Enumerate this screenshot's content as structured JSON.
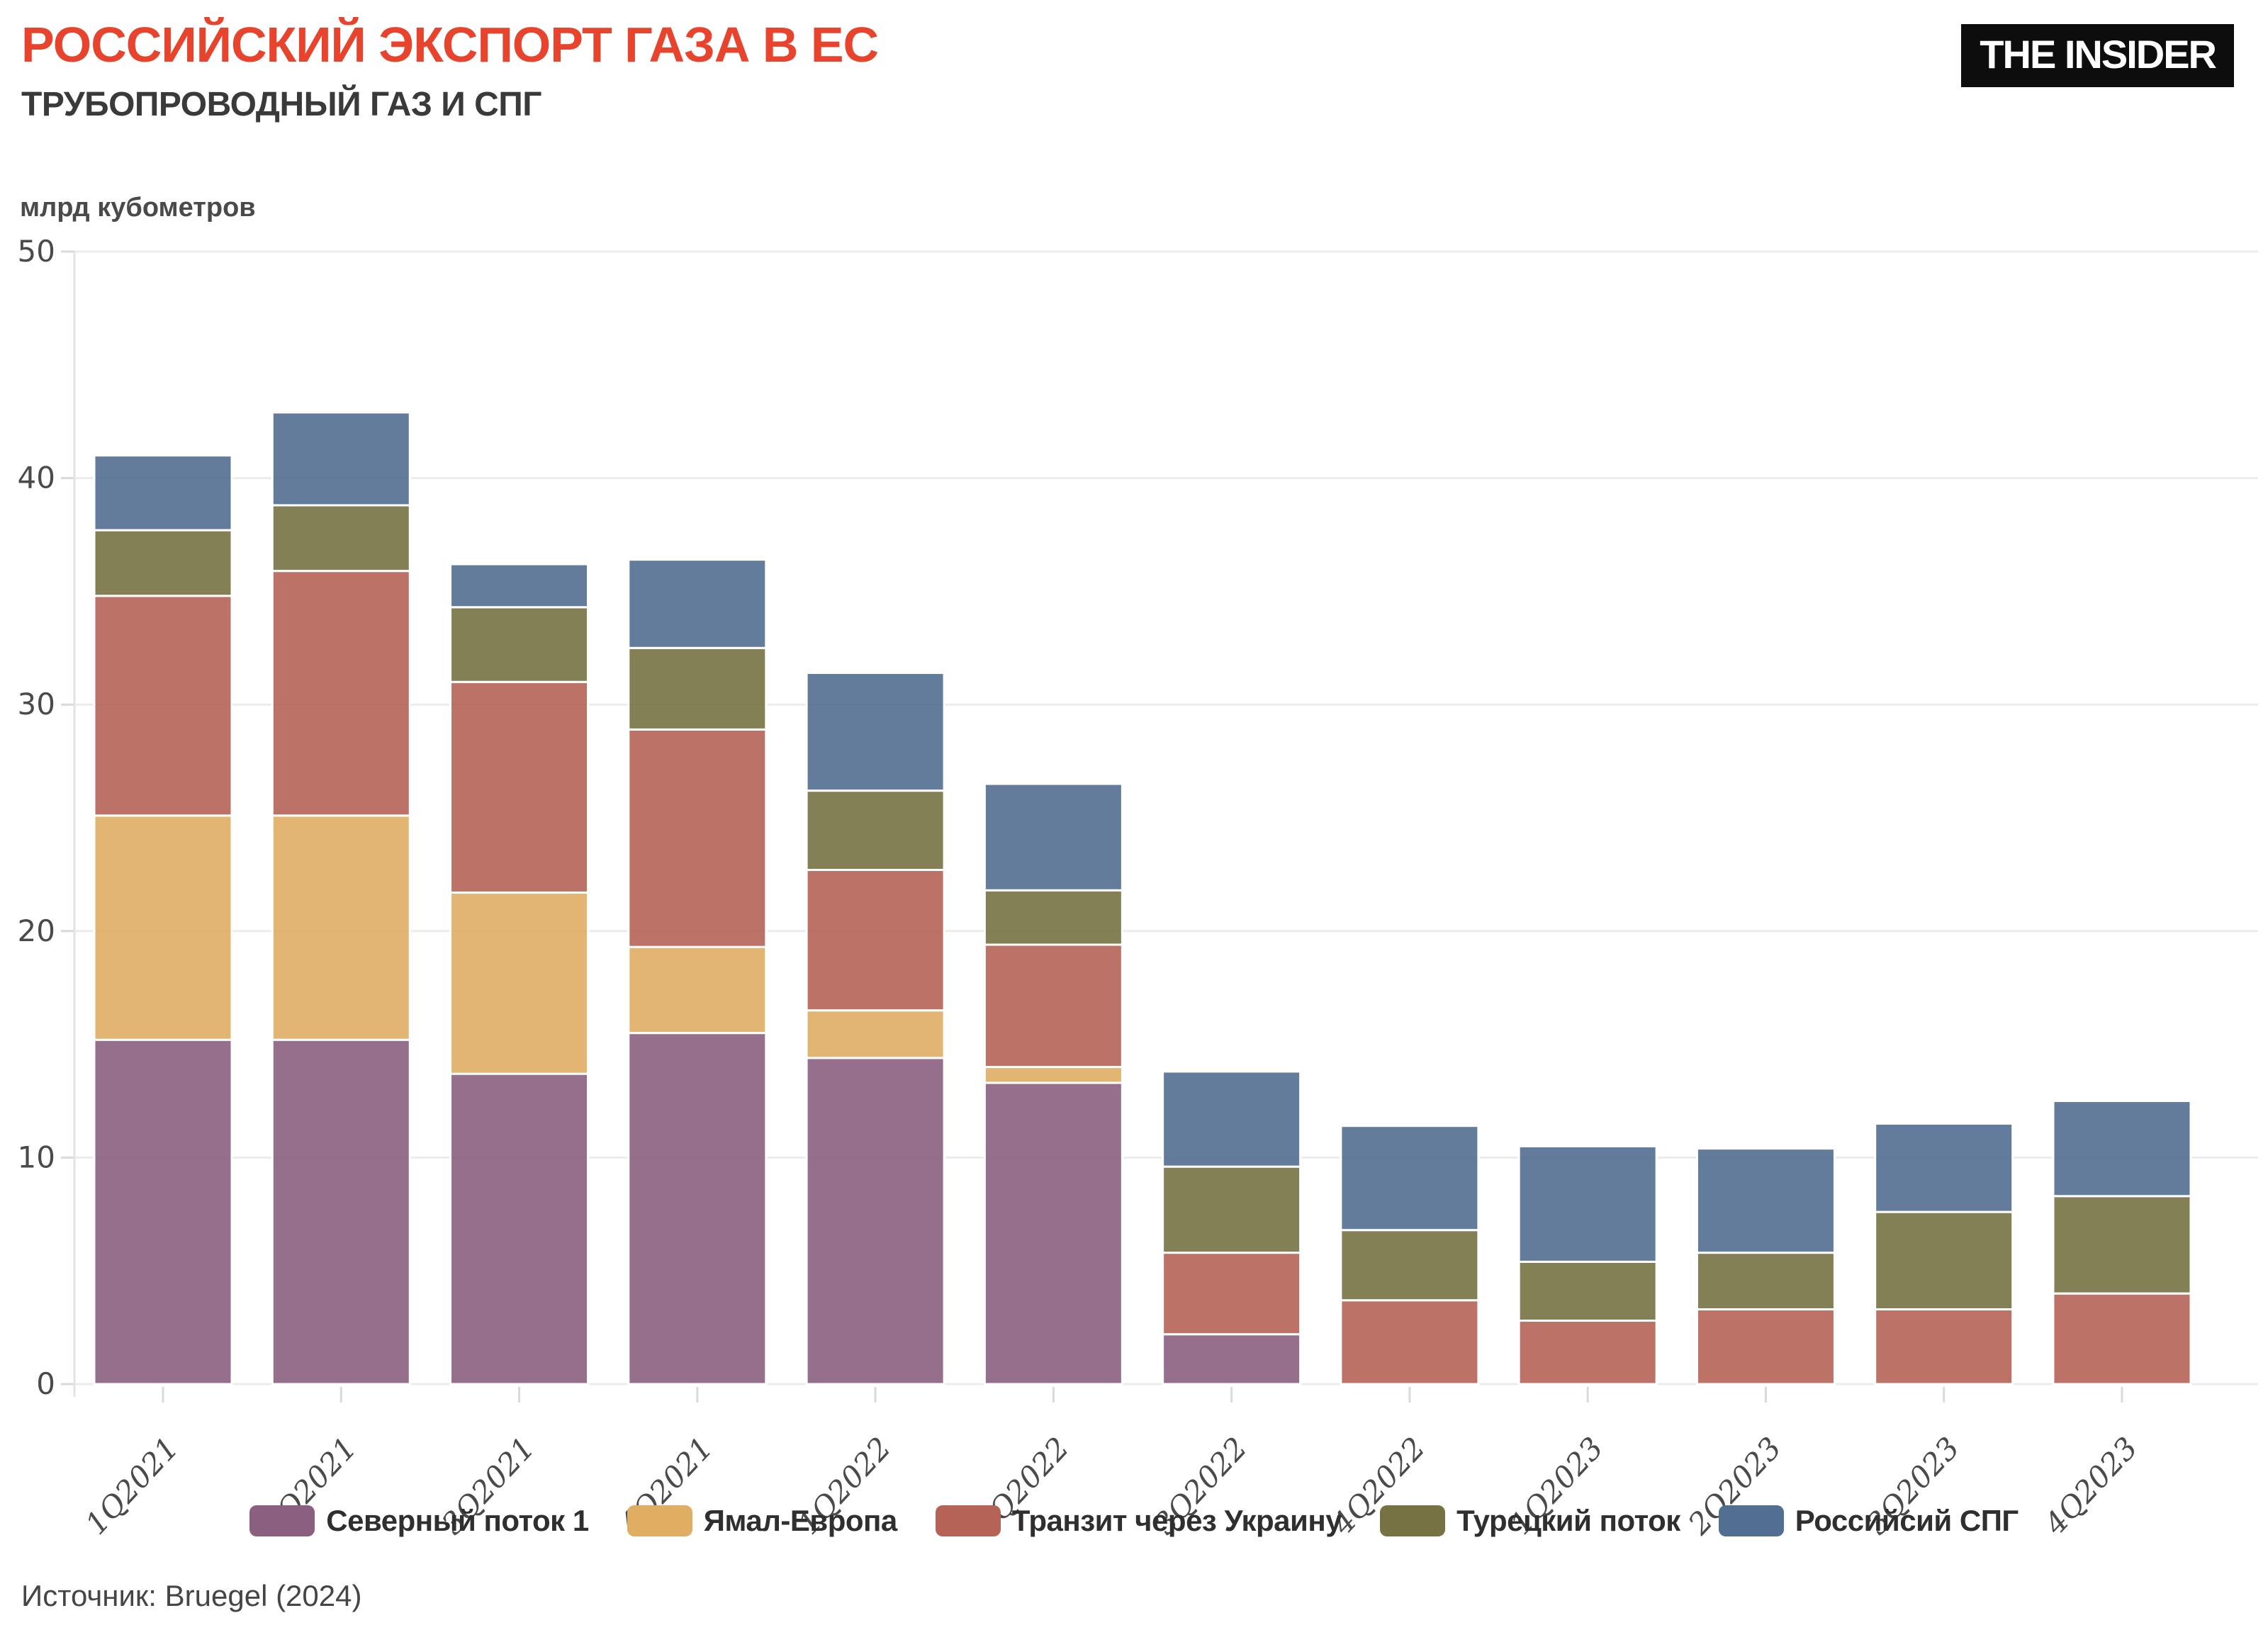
{
  "header": {
    "title": "РОССИЙСКИЙ ЭКСПОРТ ГАЗА В ЕС",
    "subtitle": "ТРУБОПРОВОДНЫЙ ГАЗ И СПГ",
    "logo_text": "THE INSIDER"
  },
  "axis": {
    "unit_label": "млрд кубометров"
  },
  "source": {
    "text": "Источник: Bruegel (2024)"
  },
  "colors": {
    "title_red": "#E8432D",
    "grid": "#ECECEC",
    "axis_line": "#E3E3E3",
    "tick_text": "#4A4A4A",
    "background": "#FFFFFF"
  },
  "chart_data": {
    "type": "bar",
    "stacked": true,
    "title": "РОССИЙСКИЙ ЭКСПОРТ ГАЗА В ЕС — ТРУБОПРОВОДНЫЙ ГАЗ И СПГ",
    "ylabel": "млрд кубометров",
    "ylim": [
      0,
      50
    ],
    "ytick_step": 10,
    "grid": true,
    "legend_position": "bottom",
    "categories": [
      "1Q2021",
      "2Q2021",
      "3Q2021",
      "4Q2021",
      "1Q2022",
      "2Q2022",
      "3Q2022",
      "4Q2022",
      "1Q2023",
      "2Q2023",
      "3Q2023",
      "4Q2023"
    ],
    "series": [
      {
        "name": "Северный поток 1",
        "color": "#8B5F7F",
        "values": [
          15.2,
          15.2,
          13.7,
          15.5,
          14.4,
          13.3,
          2.2,
          0,
          0,
          0,
          0,
          0
        ]
      },
      {
        "name": "Ямал-Европа",
        "color": "#DFAE63",
        "values": [
          9.9,
          9.9,
          8.0,
          3.8,
          2.1,
          0.7,
          0,
          0,
          0,
          0,
          0,
          0
        ]
      },
      {
        "name": "Транзит через Украину",
        "color": "#B56357",
        "values": [
          9.7,
          10.8,
          9.3,
          9.6,
          6.2,
          5.4,
          3.6,
          3.7,
          2.8,
          3.3,
          3.3,
          4.0
        ]
      },
      {
        "name": "Турецкий поток",
        "color": "#767243",
        "values": [
          2.9,
          2.9,
          3.3,
          3.6,
          3.5,
          2.4,
          3.8,
          3.1,
          2.6,
          2.5,
          4.3,
          4.3
        ]
      },
      {
        "name": "Российсий СПГ",
        "color": "#526E90",
        "values": [
          3.3,
          4.1,
          1.9,
          3.9,
          5.2,
          4.7,
          4.2,
          4.6,
          5.1,
          4.6,
          3.9,
          4.2
        ]
      }
    ],
    "totals": [
      41.0,
      42.9,
      36.2,
      36.4,
      31.4,
      26.5,
      13.8,
      11.4,
      10.5,
      10.4,
      11.5,
      12.5
    ],
    "bar_fill_opacity": 0.9
  }
}
